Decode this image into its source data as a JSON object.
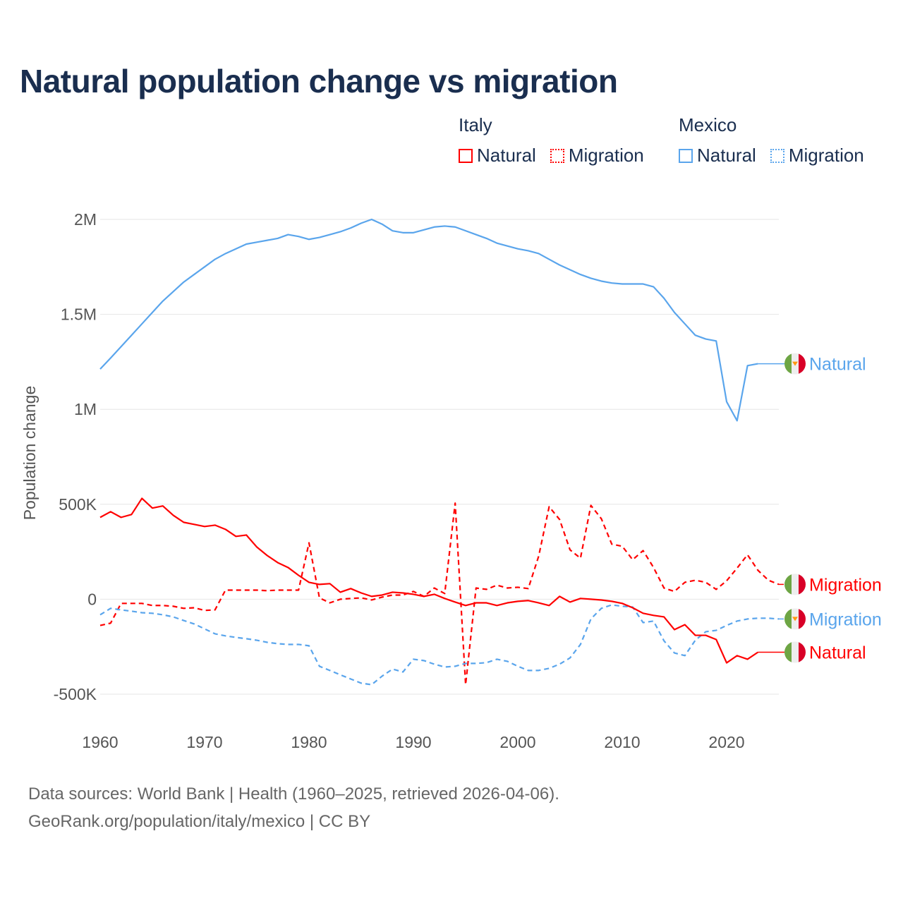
{
  "title": "Natural population change vs migration",
  "legend": {
    "groups": [
      {
        "name": "Italy",
        "items": [
          {
            "label": "Natural",
            "style": "solid",
            "color": "#ff0000"
          },
          {
            "label": "Migration",
            "style": "dotted",
            "color": "#ff0000"
          }
        ]
      },
      {
        "name": "Mexico",
        "items": [
          {
            "label": "Natural",
            "style": "solid",
            "color": "#5aa5ec"
          },
          {
            "label": "Migration",
            "style": "dotted",
            "color": "#5aa5ec"
          }
        ]
      }
    ]
  },
  "footer": {
    "line1": "Data sources: World Bank | Health (1960–2025, retrieved 2026-04-06).",
    "line2": "GeoRank.org/population/italy/mexico | CC BY"
  },
  "chart_data": {
    "type": "line",
    "title": "Natural population change vs migration",
    "xlabel": "",
    "ylabel": "Population change",
    "xlim": [
      1960,
      2025
    ],
    "ylim": [
      -500000,
      2000000
    ],
    "x_ticks": [
      1960,
      1970,
      1980,
      1990,
      2000,
      2010,
      2020
    ],
    "y_ticks": [
      {
        "v": -500000,
        "label": "-500K"
      },
      {
        "v": 0,
        "label": "0"
      },
      {
        "v": 500000,
        "label": "500K"
      },
      {
        "v": 1000000,
        "label": "1M"
      },
      {
        "v": 1500000,
        "label": "1.5M"
      },
      {
        "v": 2000000,
        "label": "2M"
      }
    ],
    "grid": true,
    "start_year": 1960,
    "series": [
      {
        "name": "Mexico Natural",
        "country": "Mexico",
        "end_label": "Natural",
        "color": "#5aa5ec",
        "dash": false,
        "values": [
          1212000,
          1270000,
          1330000,
          1390000,
          1450000,
          1510000,
          1570000,
          1620000,
          1670000,
          1710000,
          1750000,
          1790000,
          1820000,
          1845000,
          1870000,
          1880000,
          1890000,
          1900000,
          1920000,
          1910000,
          1895000,
          1905000,
          1920000,
          1935000,
          1955000,
          1980000,
          2000000,
          1975000,
          1940000,
          1930000,
          1930000,
          1945000,
          1960000,
          1965000,
          1960000,
          1940000,
          1920000,
          1900000,
          1875000,
          1860000,
          1845000,
          1835000,
          1820000,
          1790000,
          1760000,
          1735000,
          1710000,
          1690000,
          1675000,
          1665000,
          1660000,
          1660000,
          1660000,
          1645000,
          1585000,
          1510000,
          1450000,
          1390000,
          1370000,
          1360000,
          1040000,
          940000,
          1230000,
          1240000
        ]
      },
      {
        "name": "Italy Migration",
        "country": "Italy",
        "end_label": "Migration",
        "color": "#ff0000",
        "dash": true,
        "values": [
          -138000,
          -126000,
          -22000,
          -22000,
          -22000,
          -33000,
          -33000,
          -37000,
          -48000,
          -45000,
          -59000,
          -56000,
          48000,
          48000,
          48000,
          48000,
          45000,
          48000,
          48000,
          48000,
          297000,
          7000,
          -19000,
          0,
          4000,
          7000,
          -4000,
          11000,
          22000,
          22000,
          41000,
          15000,
          59000,
          30000,
          506000,
          -450000,
          59000,
          52000,
          74000,
          59000,
          63000,
          56000,
          227000,
          487000,
          420000,
          260000,
          216000,
          494000,
          424000,
          290000,
          279000,
          208000,
          256000,
          167000,
          59000,
          41000,
          89000,
          100000,
          89000,
          52000,
          97000,
          164000,
          234000,
          152000,
          100000,
          78000
        ]
      },
      {
        "name": "Mexico Migration",
        "country": "Mexico",
        "end_label": "Migration",
        "color": "#5aa5ec",
        "dash": true,
        "values": [
          -82000,
          -48000,
          -56000,
          -63000,
          -71000,
          -74000,
          -82000,
          -93000,
          -112000,
          -130000,
          -156000,
          -182000,
          -193000,
          -201000,
          -208000,
          -216000,
          -227000,
          -234000,
          -238000,
          -238000,
          -245000,
          -353000,
          -375000,
          -398000,
          -420000,
          -442000,
          -450000,
          -405000,
          -368000,
          -383000,
          -316000,
          -323000,
          -342000,
          -357000,
          -353000,
          -338000,
          -338000,
          -334000,
          -316000,
          -327000,
          -353000,
          -375000,
          -375000,
          -364000,
          -342000,
          -309000,
          -238000,
          -104000,
          -48000,
          -30000,
          -37000,
          -41000,
          -123000,
          -115000,
          -219000,
          -283000,
          -297000,
          -216000,
          -171000,
          -164000,
          -138000,
          -115000,
          -104000,
          -100000,
          -100000,
          -104000
        ]
      },
      {
        "name": "Italy Natural",
        "country": "Italy",
        "end_label": "Natural",
        "color": "#ff0000",
        "dash": false,
        "values": [
          431000,
          461000,
          431000,
          446000,
          531000,
          480000,
          491000,
          442000,
          405000,
          394000,
          383000,
          390000,
          368000,
          331000,
          338000,
          275000,
          230000,
          193000,
          167000,
          126000,
          89000,
          78000,
          82000,
          37000,
          56000,
          33000,
          15000,
          22000,
          37000,
          33000,
          26000,
          15000,
          26000,
          4000,
          -15000,
          -33000,
          -19000,
          -19000,
          -33000,
          -19000,
          -11000,
          -7000,
          -19000,
          -33000,
          15000,
          -15000,
          4000,
          0,
          -4000,
          -11000,
          -22000,
          -45000,
          -74000,
          -85000,
          -93000,
          -160000,
          -134000,
          -190000,
          -190000,
          -212000,
          -335000,
          -297000,
          -316000,
          -279000
        ]
      }
    ]
  }
}
